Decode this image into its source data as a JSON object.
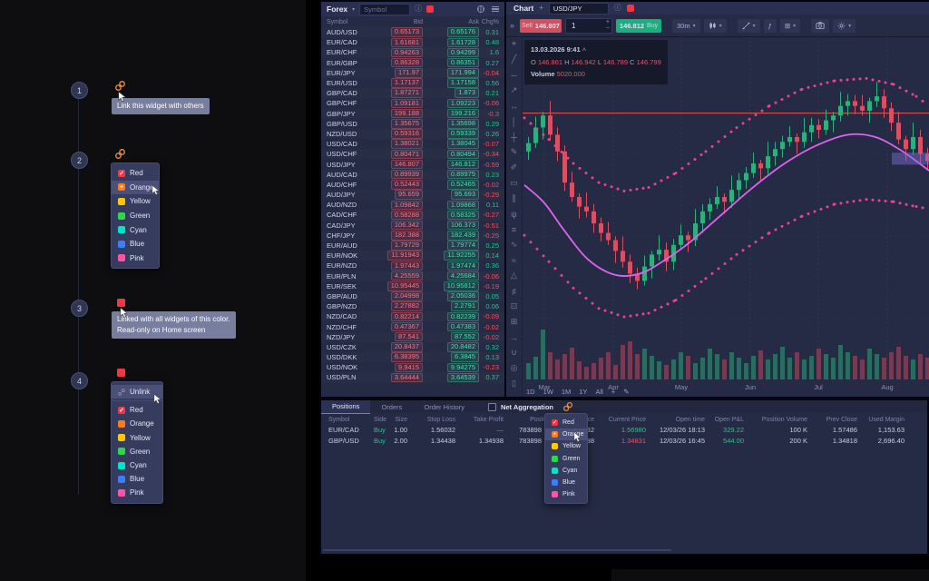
{
  "icons": {
    "chevrons": "»",
    "caret": "▾",
    "plus": "+",
    "minus": "−",
    "info": "ⓘ",
    "fn": "ƒ",
    "layout": "⊞",
    "pencil": "✎",
    "up_caret": "˄"
  },
  "annotations": {
    "steps": [
      {
        "num": "1",
        "tooltip": "Link this widget with others"
      },
      {
        "num": "2"
      },
      {
        "num": "3",
        "tooltip_line1": "Linked with all widgets of this color.",
        "tooltip_line2": "Read-only on Home screen"
      },
      {
        "num": "4"
      }
    ],
    "unlink_label": "Unlink",
    "colors": [
      {
        "label": "Red",
        "hex": "#f23645",
        "state": "checked"
      },
      {
        "label": "Orange",
        "hex": "#ff7a1a",
        "state": "plus"
      },
      {
        "label": "Yellow",
        "hex": "#ffc800",
        "state": ""
      },
      {
        "label": "Green",
        "hex": "#2bd94a",
        "state": ""
      },
      {
        "label": "Cyan",
        "hex": "#00e6ca",
        "state": ""
      },
      {
        "label": "Blue",
        "hex": "#3b7dff",
        "state": ""
      },
      {
        "label": "Pink",
        "hex": "#ff53a8",
        "state": ""
      }
    ]
  },
  "watchlist": {
    "title": "Forex",
    "search_placeholder": "Symbol",
    "columns": [
      "Symbol",
      "Bid",
      "Ask",
      "Chg%"
    ],
    "rows": [
      [
        "AUD/USD",
        "0.65173",
        "0.65176",
        "0.31"
      ],
      [
        "EUR/CAD",
        "1.61681",
        "1.61728",
        "0.48"
      ],
      [
        "EUR/CHF",
        "0.94263",
        "0.94299",
        "1.6"
      ],
      [
        "EUR/GBP",
        "0.86328",
        "0.86351",
        "0.27"
      ],
      [
        "EUR/JPY",
        "171.97",
        "171.994",
        "-0.04"
      ],
      [
        "EUR/USD",
        "1.17137",
        "1.17158",
        "0.56"
      ],
      [
        "GBP/CAD",
        "1.87271",
        "1.873",
        "0.21"
      ],
      [
        "GBP/CHF",
        "1.09181",
        "1.09223",
        "-0.06"
      ],
      [
        "GBP/JPY",
        "199.188",
        "199.216",
        "-0.3"
      ],
      [
        "GBP/USD",
        "1.35675",
        "1.35698",
        "0.29"
      ],
      [
        "NZD/USD",
        "0.59316",
        "0.59339",
        "0.26"
      ],
      [
        "USD/CAD",
        "1.38021",
        "1.38045",
        "-0.07"
      ],
      [
        "USD/CHF",
        "0.80471",
        "0.80494",
        "-0.34"
      ],
      [
        "USD/JPY",
        "146.807",
        "146.812",
        "-0.59"
      ],
      [
        "AUD/CAD",
        "0.89939",
        "0.89975",
        "0.23"
      ],
      [
        "AUD/CHF",
        "0.52443",
        "0.52465",
        "-0.02"
      ],
      [
        "AUD/JPY",
        "95.659",
        "95.693",
        "-0.29"
      ],
      [
        "AUD/NZD",
        "1.09842",
        "1.09868",
        "0.11"
      ],
      [
        "CAD/CHF",
        "0.58288",
        "0.58325",
        "-0.27"
      ],
      [
        "CAD/JPY",
        "106.342",
        "106.373",
        "-0.51"
      ],
      [
        "CHF/JPY",
        "182.388",
        "182.439",
        "-0.25"
      ],
      [
        "EUR/AUD",
        "1.79729",
        "1.79774",
        "0.25"
      ],
      [
        "EUR/NOK",
        "11.91943",
        "11.92255",
        "0.14"
      ],
      [
        "EUR/NZD",
        "1.97443",
        "1.97474",
        "0.36"
      ],
      [
        "EUR/PLN",
        "4.25559",
        "4.25684",
        "-0.06"
      ],
      [
        "EUR/SEK",
        "10.95445",
        "10.95812",
        "-0.19"
      ],
      [
        "GBP/AUD",
        "2.04998",
        "2.05036",
        "0.05"
      ],
      [
        "GBP/NZD",
        "2.27882",
        "2.2791",
        "0.06"
      ],
      [
        "NZD/CAD",
        "0.82214",
        "0.82239",
        "-0.09"
      ],
      [
        "NZD/CHF",
        "0.47367",
        "0.47383",
        "-0.02"
      ],
      [
        "NZD/JPY",
        "87.541",
        "87.552",
        "-0.02"
      ],
      [
        "USD/CZK",
        "20.8437",
        "20.8482",
        "0.32"
      ],
      [
        "USD/DKK",
        "6.38395",
        "6.3845",
        "0.13"
      ],
      [
        "USD/NOK",
        "9.9415",
        "9.94275",
        "-0.23"
      ],
      [
        "USD/PLN",
        "3.64444",
        "3.64539",
        "0.37"
      ]
    ]
  },
  "chart": {
    "tab": "Chart",
    "symbol": "USD/JPY",
    "sell_label": "Sell",
    "sell_price": "146.807",
    "qty": "1",
    "buy_price": "146.812",
    "buy_label": "Buy",
    "timeframe": "30m",
    "ranges": [
      "1D",
      "1W",
      "1M",
      "1Y",
      "All"
    ],
    "info": {
      "datetime": "13.03.2026 9:41",
      "ohlc_labels": [
        "O",
        "H",
        "L",
        "C"
      ],
      "o": "146.861",
      "h": "146.942",
      "l": "146.789",
      "c": "146.799",
      "volume_label": "Volume",
      "volume": "5020.000"
    },
    "tools": [
      {
        "name": "crosshair",
        "glyph": "⌖"
      },
      {
        "name": "trend-line",
        "glyph": "╱"
      },
      {
        "name": "horizontal-line",
        "glyph": "─"
      },
      {
        "name": "ray",
        "glyph": "↗"
      },
      {
        "name": "extended-line",
        "glyph": "↔"
      },
      {
        "name": "vertical-line",
        "glyph": "│"
      },
      {
        "name": "cross-line",
        "glyph": "┼"
      },
      {
        "name": "pencil",
        "glyph": "✎"
      },
      {
        "name": "brush",
        "glyph": "✐"
      },
      {
        "name": "rectangle",
        "glyph": "▭"
      },
      {
        "name": "parallel-channel",
        "glyph": "∥"
      },
      {
        "name": "pitchfork",
        "glyph": "ψ"
      },
      {
        "name": "fib-retracement",
        "glyph": "≡"
      },
      {
        "name": "wave",
        "glyph": "∿"
      },
      {
        "name": "zigzag",
        "glyph": "≈"
      },
      {
        "name": "triangle-pattern",
        "glyph": "△"
      },
      {
        "name": "bars-pattern",
        "glyph": "♯"
      },
      {
        "name": "image",
        "glyph": "⊡"
      },
      {
        "name": "grid",
        "glyph": "⊞"
      },
      {
        "name": "forecast",
        "glyph": "→"
      },
      {
        "name": "magnet",
        "glyph": "∪"
      },
      {
        "name": "eye",
        "glyph": "◎"
      },
      {
        "name": "trash",
        "glyph": "▯"
      }
    ]
  },
  "chart_data": {
    "type": "candlestick",
    "symbol": "USD/JPY",
    "timeframe": "30m",
    "ylim": [
      145.5,
      147.5
    ],
    "x_axis_months": [
      "Mar",
      "Apr",
      "May",
      "Jun",
      "Jul",
      "Aug"
    ],
    "hline_price": 147.2,
    "current_price_band": [
      146.77,
      146.87
    ],
    "open_first": 146.88,
    "closes": [
      146.95,
      147.08,
      147.18,
      147.02,
      146.88,
      146.62,
      146.5,
      146.42,
      146.38,
      146.28,
      146.2,
      146.14,
      146.05,
      145.96,
      145.86,
      145.8,
      145.92,
      146.02,
      146.06,
      145.96,
      146.1,
      146.18,
      146.14,
      146.28,
      146.38,
      146.44,
      146.5,
      146.46,
      146.56,
      146.64,
      146.7,
      146.78,
      146.74,
      146.84,
      146.9,
      146.96,
      147.0,
      146.96,
      147.04,
      147.1,
      147.06,
      147.14,
      147.18,
      147.26,
      147.3,
      147.26,
      147.22,
      147.3,
      147.34,
      147.24,
      147.12,
      146.98,
      146.9,
      147.0,
      146.86,
      146.8
    ],
    "volumes": [
      18,
      25,
      55,
      30,
      22,
      28,
      35,
      20,
      14,
      18,
      24,
      30,
      16,
      38,
      42,
      28,
      34,
      26,
      20,
      16,
      22,
      30,
      26,
      18,
      24,
      34,
      28,
      22,
      30,
      24,
      18,
      26,
      32,
      22,
      28,
      36,
      24,
      30,
      22,
      26,
      34,
      28,
      24,
      38,
      30,
      26,
      22,
      34,
      28,
      24,
      30,
      36,
      26,
      22,
      28,
      24
    ],
    "wick_high": [
      0.05,
      0.09,
      0.03,
      0.12,
      0.06
    ],
    "wick_low": [
      0.07,
      0.04,
      0.1,
      0.05,
      0.08
    ],
    "ma_line": [
      [
        2,
        146.6
      ],
      [
        24,
        146.45
      ],
      [
        46,
        146.22
      ],
      [
        72,
        145.98
      ],
      [
        102,
        145.85
      ],
      [
        129,
        145.86
      ],
      [
        154,
        145.96
      ],
      [
        184,
        146.12
      ],
      [
        219,
        146.35
      ],
      [
        254,
        146.58
      ],
      [
        289,
        146.78
      ],
      [
        324,
        146.93
      ],
      [
        359,
        147.02
      ],
      [
        389,
        147.0
      ],
      [
        419,
        146.88
      ],
      [
        448,
        146.72
      ]
    ],
    "upper_band": [
      [
        2,
        147.16
      ],
      [
        29,
        146.98
      ],
      [
        56,
        146.78
      ],
      [
        84,
        146.62
      ],
      [
        112,
        146.55
      ],
      [
        139,
        146.58
      ],
      [
        169,
        146.7
      ],
      [
        202,
        146.88
      ],
      [
        236,
        147.08
      ],
      [
        272,
        147.26
      ],
      [
        308,
        147.4
      ],
      [
        344,
        147.47
      ],
      [
        379,
        147.49
      ],
      [
        409,
        147.44
      ],
      [
        434,
        147.34
      ],
      [
        448,
        147.26
      ]
    ],
    "lower_band": [
      [
        2,
        146.18
      ],
      [
        29,
        145.96
      ],
      [
        56,
        145.74
      ],
      [
        84,
        145.57
      ],
      [
        112,
        145.5
      ],
      [
        139,
        145.53
      ],
      [
        169,
        145.64
      ],
      [
        202,
        145.82
      ],
      [
        236,
        146.02
      ],
      [
        272,
        146.2
      ],
      [
        308,
        146.34
      ],
      [
        344,
        146.44
      ],
      [
        379,
        146.48
      ],
      [
        409,
        146.46
      ],
      [
        434,
        146.42
      ],
      [
        448,
        146.4
      ]
    ]
  },
  "positions": {
    "tabs": [
      "Positions",
      "Orders",
      "Order History"
    ],
    "net_aggregation_label": "Net Aggregation",
    "columns": [
      "Symbol",
      "Side",
      "Size",
      "Stop Loss",
      "Take Profit",
      "Position ID",
      "Open Price",
      "Current Price",
      "Open time",
      "Open P&L",
      "Position Volume",
      "Prev Close",
      "Used Margin"
    ],
    "rows": [
      {
        "symbol": "EUR/CAD",
        "side": "Buy",
        "size": "1.00",
        "stop_loss": "1.56032",
        "take_profit": "—",
        "position_id": "783898",
        "open_price": "1.56532",
        "current_price": "1.56980",
        "current_dir": "up",
        "open_time": "12/03/26 18:13",
        "open_pnl": "329.22",
        "position_volume": "100 K",
        "prev_close": "1.57486",
        "used_margin": "1,153.63"
      },
      {
        "symbol": "GBP/USD",
        "side": "Buy",
        "size": "2.00",
        "stop_loss": "1.34438",
        "take_profit": "1.34938",
        "position_id": "783898",
        "open_price": "1.34538",
        "current_price": "1.34831",
        "current_dir": "down",
        "open_time": "12/03/26 16:45",
        "open_pnl": "544.00",
        "position_volume": "200 K",
        "prev_close": "1.34818",
        "used_margin": "2,696.40"
      }
    ]
  },
  "colors": {
    "up": "#2fbf8d",
    "down": "#ef5160",
    "candle_up": "#2fae7e",
    "candle_down": "#d94f63",
    "ma": "#dd63ef",
    "band_dot": "#f0408f",
    "hline": "#ef5350",
    "accent_tab": "#5d82e8",
    "link_icon": "#e78b41"
  }
}
